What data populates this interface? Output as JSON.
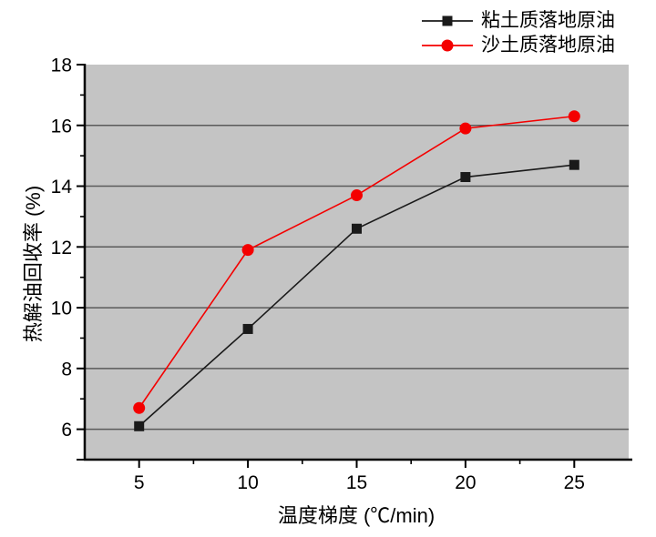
{
  "chart_data": {
    "type": "line",
    "title": "",
    "xlabel": "温度梯度 (℃/min)",
    "ylabel": "热解油回收率 (%)",
    "x": [
      5,
      10,
      15,
      20,
      25
    ],
    "series": [
      {
        "name": "粘土质落地原油",
        "color": "#1a1a1a",
        "marker": "square",
        "values": [
          6.1,
          9.3,
          12.6,
          14.3,
          14.7
        ]
      },
      {
        "name": "沙土质落地原油",
        "color": "#f40000",
        "marker": "circle",
        "values": [
          6.7,
          11.9,
          13.7,
          15.9,
          16.3
        ]
      }
    ],
    "xlim": [
      2.5,
      27.5
    ],
    "ylim": [
      5,
      18
    ],
    "x_major_ticks": [
      5,
      10,
      15,
      20,
      25
    ],
    "x_minor_ticks": [
      7.5,
      12.5,
      17.5,
      22.5
    ],
    "y_major_ticks": [
      6,
      8,
      10,
      12,
      14,
      16,
      18
    ],
    "y_minor_ticks": [
      7,
      9,
      11,
      13,
      15,
      17
    ],
    "y_axis_end_tick": 5,
    "grid_values": [
      6,
      8,
      10,
      12,
      14,
      16
    ],
    "grid_on": true,
    "legend_position": "top-right",
    "colors": {
      "plot_background": "#c4c4c4",
      "gridline": "#5a5a5a",
      "axis": "#000000",
      "tick_label": "#000000"
    }
  }
}
